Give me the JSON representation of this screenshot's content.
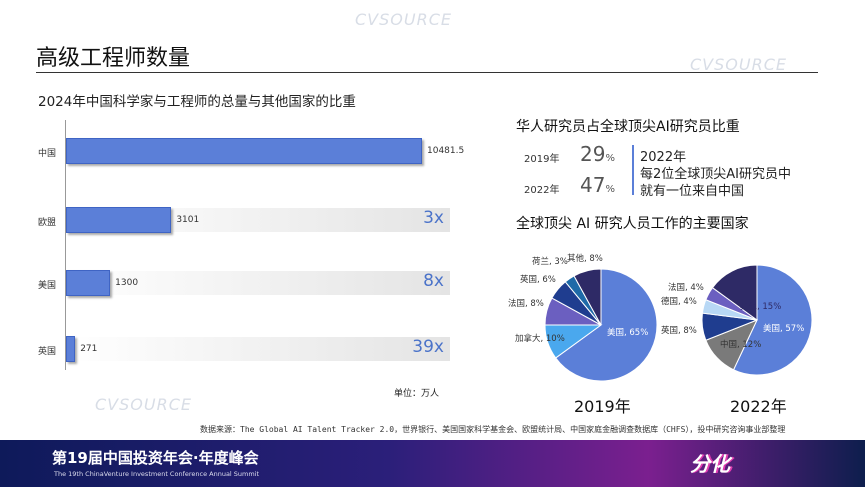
{
  "title": "高级工程师数量",
  "bar_section": {
    "subtitle": "2024年中国科学家与工程师的总量与其他国家的比重",
    "unit": "单位：万人"
  },
  "chart_data": [
    {
      "type": "bar",
      "orientation": "horizontal",
      "title": "2024年中国科学家与工程师的总量与其他国家的比重",
      "categories": [
        "中国",
        "欧盟",
        "美国",
        "英国"
      ],
      "values": [
        10481.5,
        3101,
        1300,
        271
      ],
      "value_labels": [
        "10481.5",
        "3101",
        "1300",
        "271"
      ],
      "multiples": [
        "",
        "3x",
        "8x",
        "39x"
      ],
      "unit": "万人",
      "color": "#5b7fd8"
    },
    {
      "type": "pie",
      "title": "2019年",
      "slices": [
        {
          "label": "美国, 65%",
          "value": 65,
          "color": "#5b7fd8"
        },
        {
          "label": "加拿大, 10%",
          "value": 10,
          "color": "#4aa8ee"
        },
        {
          "label": "法国, 8%",
          "value": 8,
          "color": "#6b5fc0"
        },
        {
          "label": "英国, 6%",
          "value": 6,
          "color": "#1f3d8f"
        },
        {
          "label": "荷兰, 3%",
          "value": 3,
          "color": "#1e6aa8"
        },
        {
          "label": "其他, 8%",
          "value": 8,
          "color": "#2e2a66"
        }
      ]
    },
    {
      "type": "pie",
      "title": "2022年",
      "slices": [
        {
          "label": "美国, 57%",
          "value": 57,
          "color": "#5b7fd8"
        },
        {
          "label": "中国, 12%",
          "value": 12,
          "color": "#7a7a7a"
        },
        {
          "label": "英国, 8%",
          "value": 8,
          "color": "#1f3d8f"
        },
        {
          "label": "德国, 4%",
          "value": 4,
          "color": "#b8d8f5"
        },
        {
          "label": "法国, 4%",
          "value": 4,
          "color": "#6b5fc0"
        },
        {
          "label": "其他, 15%",
          "value": 15,
          "color": "#2e2a66"
        }
      ]
    }
  ],
  "share": {
    "heading": "华人研究员占全球顶尖AI研究员比重",
    "rows": [
      {
        "year": "2019年",
        "value": "29",
        "unit": "%"
      },
      {
        "year": "2022年",
        "value": "47",
        "unit": "%"
      }
    ],
    "note": [
      "2022年",
      "每2位全球顶尖AI研究员中",
      "就有一位来自中国"
    ]
  },
  "pies": {
    "heading": "全球顶尖 AI 研究人员工作的主要国家"
  },
  "source": "数据来源：The Global AI Talent Tracker 2.0，世界银行、美国国家科学基金会、欧盟统计局、中国家庭金融调查数据库（CHFS），投中研究咨询事业部整理",
  "banner": {
    "title": "第19届中国投资年会·年度峰会",
    "subtitle": "The 19th ChinaVenture Investment Conference Annual Summit",
    "logo": "分化"
  },
  "watermark": "CVSOURCE"
}
